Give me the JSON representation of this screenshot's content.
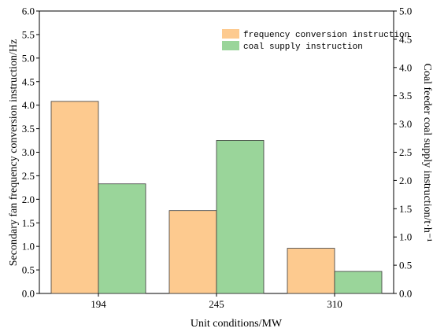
{
  "chart_data": {
    "type": "bar",
    "categories": [
      "194",
      "245",
      "310"
    ],
    "xlabel": "Unit conditions/MW",
    "ylabel_left": "Secondary fan frequency conversion instruction/Hz",
    "ylabel_right": "Coal feeder coal supply instruction/t·h⁻¹",
    "ylim_left": [
      0,
      6
    ],
    "ylim_right": [
      0,
      5
    ],
    "yticks_left": [
      "0.0",
      "0.5",
      "1.0",
      "1.5",
      "2.0",
      "2.5",
      "3.0",
      "3.5",
      "4.0",
      "4.5",
      "5.0",
      "5.5",
      "6.0"
    ],
    "yticks_right": [
      "0.0",
      "0.5",
      "1.0",
      "1.5",
      "2.0",
      "2.5",
      "3.0",
      "3.5",
      "4.0",
      "4.5",
      "5.0"
    ],
    "legend_position": "top-right",
    "series": [
      {
        "name": "frequency conversion instruction",
        "axis": "left",
        "color": "#fdca8f",
        "values": [
          4.08,
          1.76,
          0.96
        ]
      },
      {
        "name": "coal supply instruction",
        "axis": "right",
        "color": "#9ad59a",
        "values": [
          1.94,
          2.71,
          0.39
        ]
      }
    ]
  }
}
